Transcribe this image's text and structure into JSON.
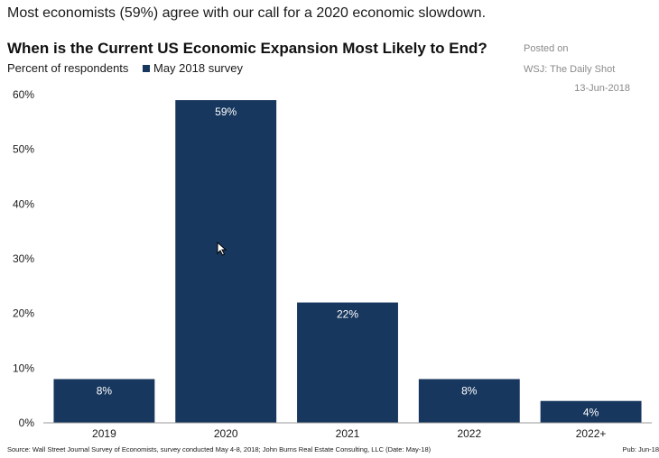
{
  "headline": "Most economists (59%) agree with our call for a 2020 economic slowdown.",
  "posted": {
    "line1": "Posted on",
    "line2": "WSJ: The Daily Shot",
    "line3": "13-Jun-2018"
  },
  "footer": {
    "source": "Source: Wall Street Journal Survey of Economists, survey conducted May 4-8, 2018; John Burns Real Estate Consulting, LLC (Date: May-18)",
    "pub": "Pub: Jun-18"
  },
  "cursor_icon": "mouse-pointer-icon",
  "chart_data": {
    "type": "bar",
    "title": "When is the Current US Economic Expansion Most Likely to End?",
    "subtitle": "Percent of respondents",
    "legend": {
      "label": "May 2018 survey",
      "placement": "top-left"
    },
    "color": "#17375e",
    "categories": [
      "2019",
      "2020",
      "2021",
      "2022",
      "2022+"
    ],
    "values": [
      8,
      59,
      22,
      8,
      4
    ],
    "data_labels": [
      "8%",
      "59%",
      "22%",
      "8%",
      "4%"
    ],
    "yticks": [
      "0%",
      "10%",
      "20%",
      "30%",
      "40%",
      "50%",
      "60%"
    ],
    "ylim": [
      0,
      60
    ],
    "grid": false
  }
}
